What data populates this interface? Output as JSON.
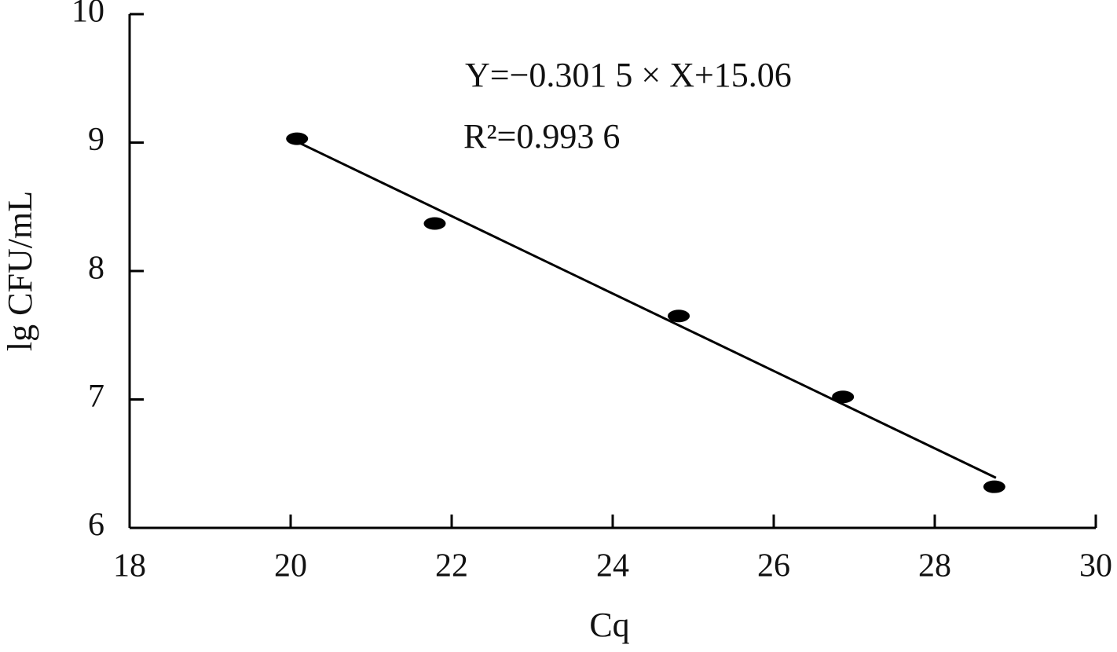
{
  "chart_data": {
    "type": "scatter",
    "x_label": "Cq",
    "y_label": "lg CFU/mL",
    "annotations": [
      "Y=−0.301 5 × X+15.06",
      "R²=0.993 6"
    ],
    "series": [
      {
        "x": [
          20.08,
          21.79,
          24.82,
          26.86,
          28.74
        ],
        "values": [
          9.03,
          8.37,
          7.65,
          7.02,
          6.32
        ],
        "color": "#000000"
      }
    ],
    "trendline": {
      "x": [
        20.0,
        28.76
      ],
      "values": [
        9.03,
        6.39
      ],
      "color": "#000000"
    },
    "xlim": [
      18,
      30
    ],
    "xticks": [
      18,
      20,
      22,
      24,
      26,
      28,
      30
    ],
    "ylim": [
      6,
      10
    ],
    "yticks": [
      6,
      7,
      8,
      9,
      10
    ]
  }
}
